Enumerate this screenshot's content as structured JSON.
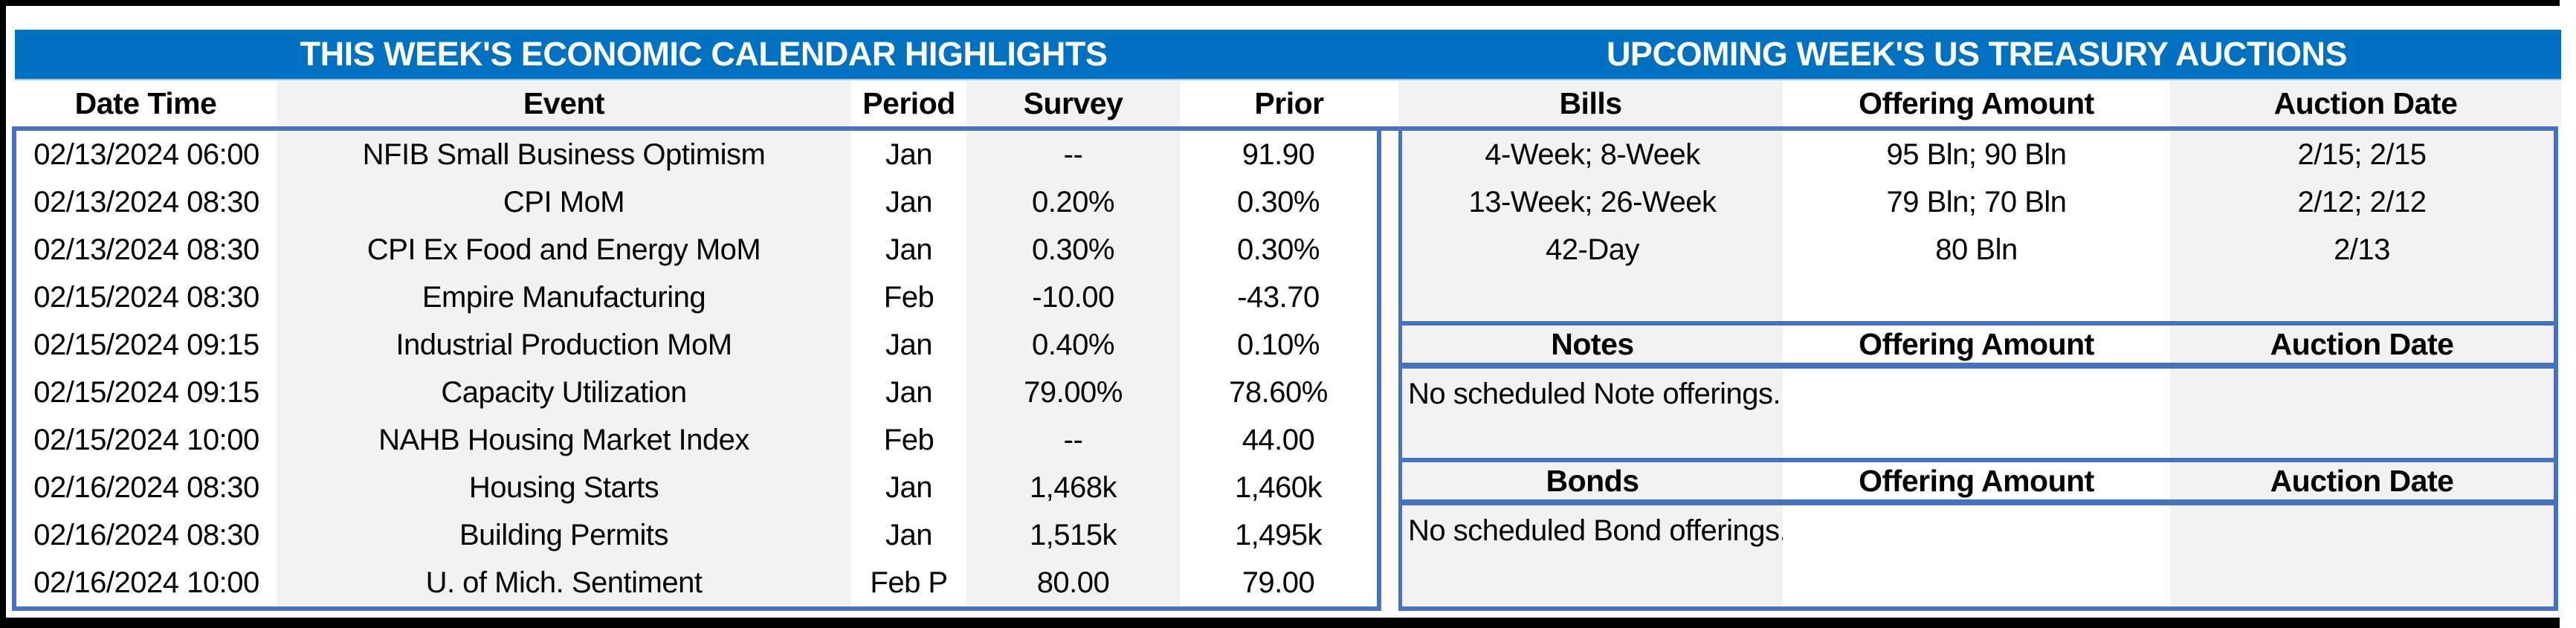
{
  "page": {
    "left_title": "THIS WEEK'S ECONOMIC CALENDAR HIGHLIGHTS",
    "right_title": "UPCOMING WEEK'S US TREASURY AUCTIONS"
  },
  "calendar": {
    "headers": {
      "date_time": "Date Time",
      "event": "Event",
      "period": "Period",
      "survey": "Survey",
      "prior": "Prior"
    },
    "rows": [
      {
        "date_time": "02/13/2024 06:00",
        "event": "NFIB Small Business Optimism",
        "period": "Jan",
        "survey": "--",
        "prior": "91.90"
      },
      {
        "date_time": "02/13/2024 08:30",
        "event": "CPI MoM",
        "period": "Jan",
        "survey": "0.20%",
        "prior": "0.30%"
      },
      {
        "date_time": "02/13/2024 08:30",
        "event": "CPI Ex Food and Energy MoM",
        "period": "Jan",
        "survey": "0.30%",
        "prior": "0.30%"
      },
      {
        "date_time": "02/15/2024 08:30",
        "event": "Empire Manufacturing",
        "period": "Feb",
        "survey": "-10.00",
        "prior": "-43.70"
      },
      {
        "date_time": "02/15/2024 09:15",
        "event": "Industrial Production MoM",
        "period": "Jan",
        "survey": "0.40%",
        "prior": "0.10%"
      },
      {
        "date_time": "02/15/2024 09:15",
        "event": "Capacity Utilization",
        "period": "Jan",
        "survey": "79.00%",
        "prior": "78.60%"
      },
      {
        "date_time": "02/15/2024 10:00",
        "event": "NAHB Housing Market Index",
        "period": "Feb",
        "survey": "--",
        "prior": "44.00"
      },
      {
        "date_time": "02/16/2024 08:30",
        "event": "Housing Starts",
        "period": "Jan",
        "survey": "1,468k",
        "prior": "1,460k"
      },
      {
        "date_time": "02/16/2024 08:30",
        "event": "Building Permits",
        "period": "Jan",
        "survey": "1,515k",
        "prior": "1,495k"
      },
      {
        "date_time": "02/16/2024 10:00",
        "event": "U. of Mich. Sentiment",
        "period": "Feb P",
        "survey": "80.00",
        "prior": "79.00"
      }
    ]
  },
  "auctions": {
    "bills": {
      "headers": {
        "security": "Bills",
        "amount": "Offering Amount",
        "date": "Auction Date"
      },
      "rows": [
        {
          "security": "4-Week; 8-Week",
          "amount": "95 Bln; 90 Bln",
          "date": "2/15; 2/15"
        },
        {
          "security": "13-Week; 26-Week",
          "amount": "79 Bln; 70 Bln",
          "date": "2/12; 2/12"
        },
        {
          "security": "42-Day",
          "amount": "80 Bln",
          "date": "2/13"
        },
        {
          "security": "",
          "amount": "",
          "date": ""
        }
      ]
    },
    "notes": {
      "headers": {
        "security": "Notes",
        "amount": "Offering Amount",
        "date": "Auction Date"
      },
      "message": "No scheduled Note offerings."
    },
    "bonds": {
      "headers": {
        "security": "Bonds",
        "amount": "Offering Amount",
        "date": "Auction Date"
      },
      "message": "No scheduled Bond offerings."
    }
  },
  "colors": {
    "title_bar_blue": "#0070C0",
    "table_border_blue": "#4472C4",
    "stripe_gray": "#F2F2F2",
    "header_divider_light_blue": "#9DC3E6",
    "text_black": "#000000",
    "frame_black": "#000000"
  }
}
